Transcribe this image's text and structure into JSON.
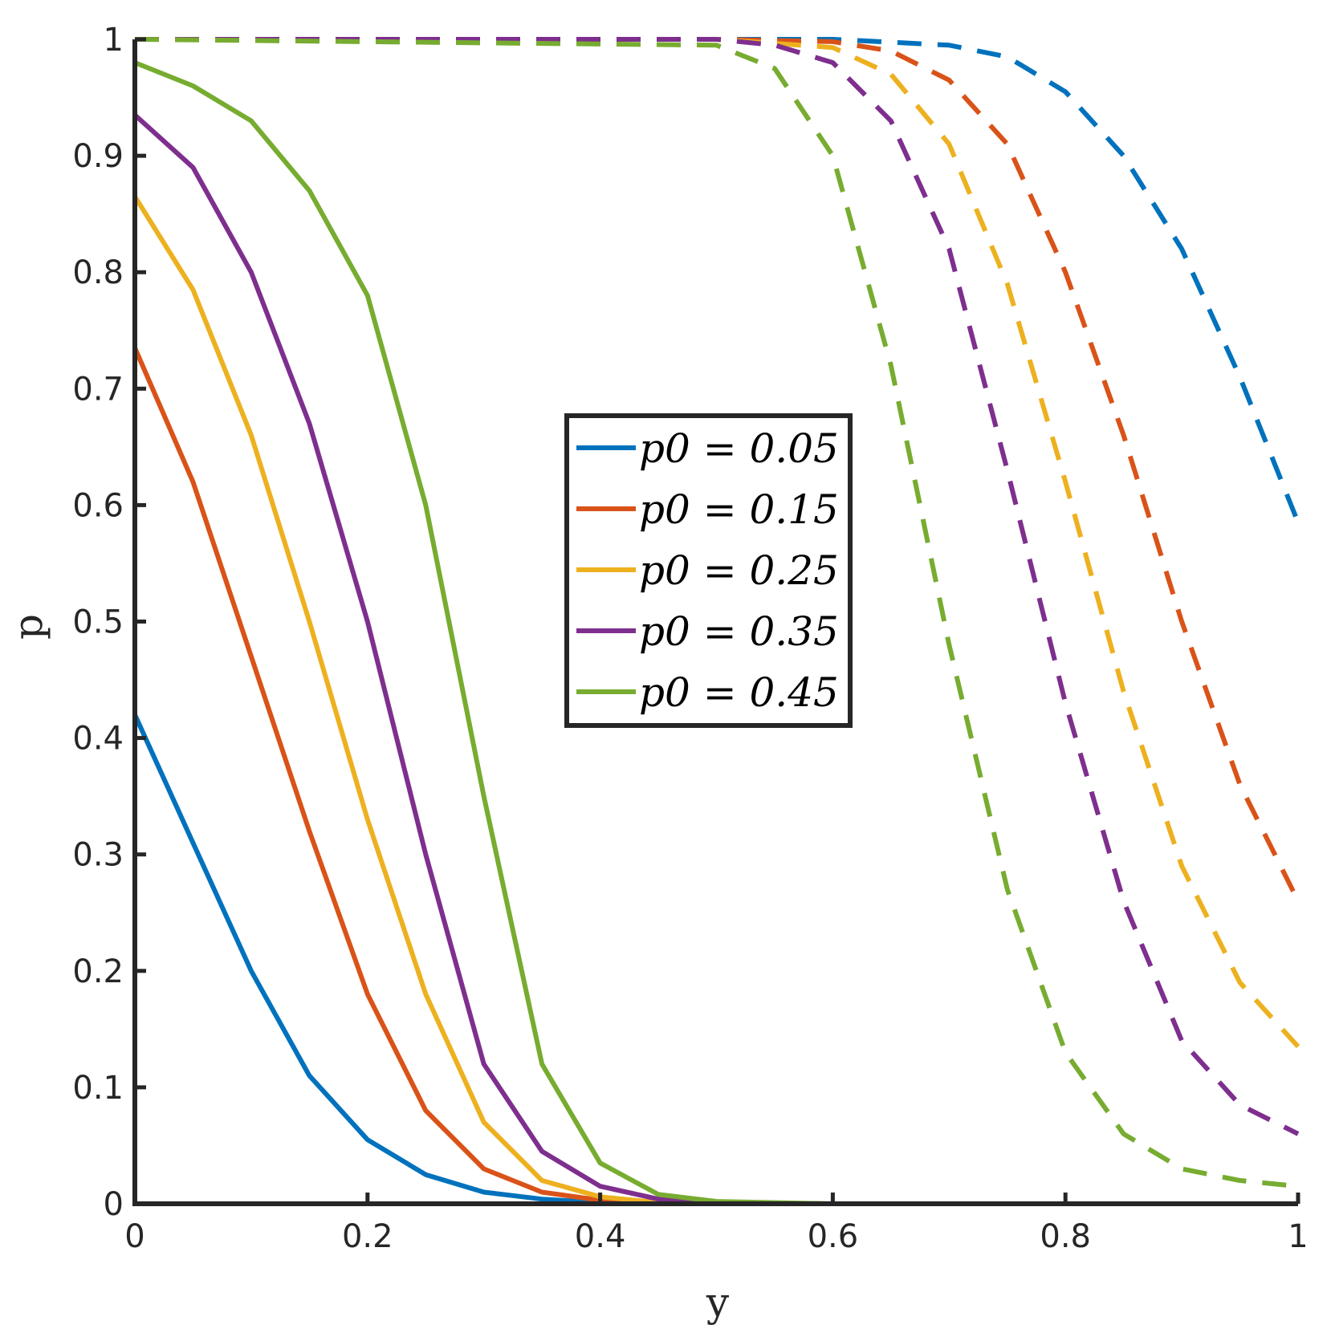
{
  "chart_data": {
    "type": "line",
    "xlabel": "y",
    "ylabel": "p",
    "xlim": [
      0,
      1
    ],
    "ylim": [
      0,
      1
    ],
    "xticks": [
      "0",
      "0.2",
      "0.4",
      "0.6",
      "0.8",
      "1"
    ],
    "yticks": [
      "0",
      "0.1",
      "0.2",
      "0.3",
      "0.4",
      "0.5",
      "0.6",
      "0.7",
      "0.8",
      "0.9",
      "1"
    ],
    "grid": false,
    "legend_position": "center",
    "series": [
      {
        "name": "p_0 = 0.05",
        "legend_label": "p0 = 0.05",
        "color": "#0072BD",
        "solid": {
          "x": [
            0,
            0.05,
            0.1,
            0.15,
            0.2,
            0.25,
            0.3,
            0.35,
            0.4,
            0.45,
            0.5,
            0.6,
            0.8,
            1.0
          ],
          "y": [
            0.42,
            0.31,
            0.2,
            0.11,
            0.055,
            0.025,
            0.01,
            0.004,
            0.001,
            0.0,
            0.0,
            0.0,
            0.0,
            0.0
          ]
        },
        "dashed": {
          "x": [
            0,
            0.5,
            0.6,
            0.7,
            0.75,
            0.8,
            0.85,
            0.9,
            0.95,
            1.0
          ],
          "y": [
            1.0,
            1.0,
            1.0,
            0.995,
            0.985,
            0.955,
            0.9,
            0.82,
            0.71,
            0.585
          ]
        }
      },
      {
        "name": "p_0 = 0.15",
        "legend_label": "p0 = 0.15",
        "color": "#D95319",
        "solid": {
          "x": [
            0,
            0.05,
            0.1,
            0.15,
            0.2,
            0.25,
            0.3,
            0.35,
            0.4,
            0.45,
            0.5,
            0.6,
            0.8,
            1.0
          ],
          "y": [
            0.735,
            0.62,
            0.47,
            0.32,
            0.18,
            0.08,
            0.03,
            0.01,
            0.003,
            0.001,
            0.0,
            0.0,
            0.0,
            0.0
          ]
        },
        "dashed": {
          "x": [
            0,
            0.5,
            0.6,
            0.65,
            0.7,
            0.75,
            0.8,
            0.85,
            0.9,
            0.95,
            1.0
          ],
          "y": [
            1.0,
            1.0,
            0.998,
            0.99,
            0.965,
            0.91,
            0.8,
            0.66,
            0.5,
            0.36,
            0.26
          ]
        }
      },
      {
        "name": "p_0 = 0.25",
        "legend_label": "p0 = 0.25",
        "color": "#EDB120",
        "solid": {
          "x": [
            0,
            0.05,
            0.1,
            0.15,
            0.2,
            0.25,
            0.3,
            0.35,
            0.4,
            0.45,
            0.5,
            0.6,
            0.8,
            1.0
          ],
          "y": [
            0.865,
            0.785,
            0.66,
            0.5,
            0.33,
            0.18,
            0.07,
            0.02,
            0.006,
            0.001,
            0.0,
            0.0,
            0.0,
            0.0
          ]
        },
        "dashed": {
          "x": [
            0,
            0.5,
            0.6,
            0.65,
            0.7,
            0.75,
            0.8,
            0.85,
            0.9,
            0.95,
            1.0
          ],
          "y": [
            1.0,
            1.0,
            0.993,
            0.97,
            0.91,
            0.79,
            0.62,
            0.44,
            0.29,
            0.19,
            0.135
          ]
        }
      },
      {
        "name": "p_0 = 0.35",
        "legend_label": "p0 = 0.35",
        "color": "#7E2F8E",
        "solid": {
          "x": [
            0,
            0.05,
            0.1,
            0.15,
            0.2,
            0.25,
            0.3,
            0.35,
            0.4,
            0.45,
            0.5,
            0.6,
            0.8,
            1.0
          ],
          "y": [
            0.935,
            0.89,
            0.8,
            0.67,
            0.5,
            0.3,
            0.12,
            0.045,
            0.015,
            0.004,
            0.001,
            0.0,
            0.0,
            0.0
          ]
        },
        "dashed": {
          "x": [
            0,
            0.5,
            0.55,
            0.6,
            0.65,
            0.7,
            0.75,
            0.8,
            0.85,
            0.9,
            0.95,
            1.0
          ],
          "y": [
            1.0,
            1.0,
            0.995,
            0.98,
            0.93,
            0.82,
            0.63,
            0.43,
            0.26,
            0.14,
            0.085,
            0.06
          ]
        }
      },
      {
        "name": "p_0 = 0.45",
        "legend_label": "p0 = 0.45",
        "color": "#77AC30",
        "solid": {
          "x": [
            0,
            0.05,
            0.1,
            0.15,
            0.2,
            0.25,
            0.3,
            0.35,
            0.4,
            0.45,
            0.5,
            0.6,
            0.8,
            1.0
          ],
          "y": [
            0.98,
            0.96,
            0.93,
            0.87,
            0.78,
            0.6,
            0.35,
            0.12,
            0.035,
            0.008,
            0.002,
            0.0,
            0.0,
            0.0
          ]
        },
        "dashed": {
          "x": [
            0,
            0.5,
            0.55,
            0.6,
            0.65,
            0.7,
            0.75,
            0.8,
            0.85,
            0.9,
            0.95,
            1.0
          ],
          "y": [
            1.0,
            0.995,
            0.975,
            0.9,
            0.72,
            0.48,
            0.27,
            0.13,
            0.06,
            0.03,
            0.02,
            0.015
          ]
        }
      }
    ]
  }
}
